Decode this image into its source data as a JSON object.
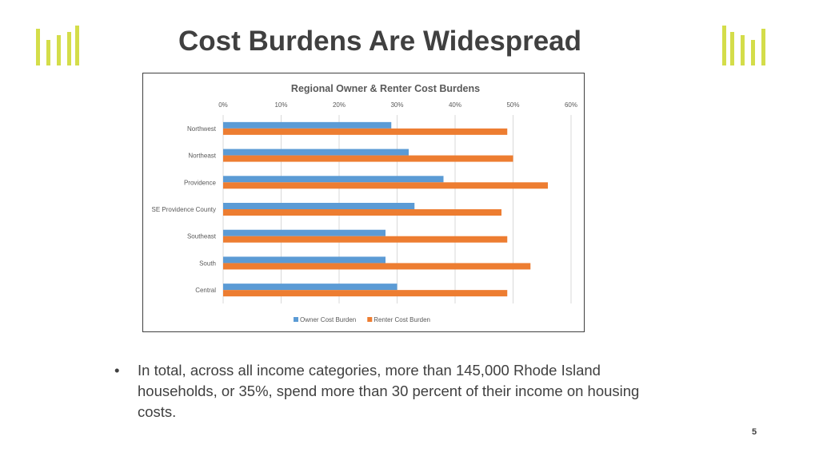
{
  "slide": {
    "title": "Cost Burdens Are Widespread",
    "bullet_marker": "•",
    "bullet_text": "In total, across all income categories, more than 145,000 Rhode Island households, or 35%, spend more than 30 percent of their income on housing costs.",
    "page_number": "5",
    "logo_color": "#d4dd4a"
  },
  "chart_data": {
    "type": "bar",
    "orientation": "horizontal",
    "title": "Regional Owner & Renter Cost Burdens",
    "categories": [
      "Northwest",
      "Northeast",
      "Providence",
      "SE Providence County",
      "Southeast",
      "South",
      "Central"
    ],
    "series": [
      {
        "name": "Owner Cost Burden",
        "color": "#5b9bd5",
        "values": [
          29,
          32,
          38,
          33,
          28,
          28,
          30
        ]
      },
      {
        "name": "Renter Cost Burden",
        "color": "#ed7d31",
        "values": [
          49,
          50,
          56,
          48,
          49,
          53,
          49
        ]
      }
    ],
    "xlim": [
      0,
      60
    ],
    "x_ticks": [
      "0%",
      "10%",
      "20%",
      "30%",
      "40%",
      "50%",
      "60%"
    ],
    "x_axis_position": "top",
    "grid": true,
    "legend_position": "bottom"
  }
}
